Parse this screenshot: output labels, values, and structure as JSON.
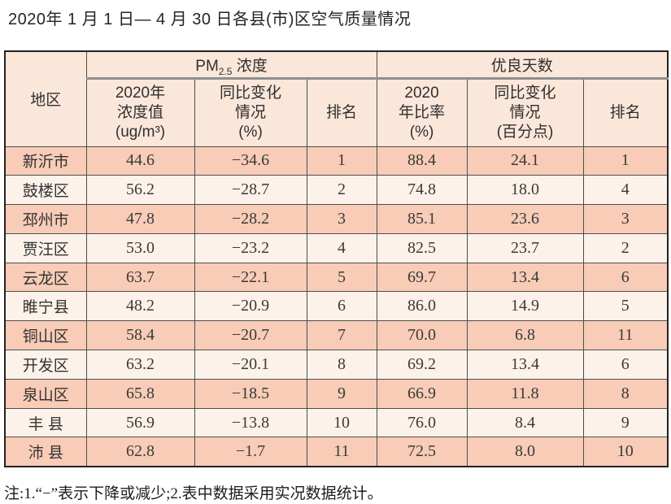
{
  "title": "2020年 1 月 1 日— 4 月 30 日各县(市)区空气质量情况",
  "colors": {
    "header_bg": "#fbe7da",
    "row_odd_bg": "#f8ccb7",
    "row_even_bg": "#fdf2ea",
    "border": "#4d4d4d",
    "outer_border": "#222222"
  },
  "table": {
    "region_header": "地区",
    "pm_group": {
      "prefix": "PM",
      "sub": "2.5",
      "suffix": " 浓度"
    },
    "good_group_label": "优良天数",
    "sub_headers": {
      "pm_value": [
        "2020年",
        "浓度值",
        "(ug/m³)"
      ],
      "pm_change": [
        "同比变化",
        "情况",
        "(%)"
      ],
      "pm_rank": "排名",
      "good_ratio": [
        "2020",
        "年比率",
        "(%)"
      ],
      "good_change": [
        "同比变化",
        "情况",
        "(百分点)"
      ],
      "good_rank": "排名"
    },
    "rows": [
      {
        "region": "新沂市",
        "pm_value": "44.6",
        "pm_change": "−34.6",
        "pm_rank": "1",
        "good_ratio": "88.4",
        "good_change": "24.1",
        "good_rank": "1"
      },
      {
        "region": "鼓楼区",
        "pm_value": "56.2",
        "pm_change": "−28.7",
        "pm_rank": "2",
        "good_ratio": "74.8",
        "good_change": "18.0",
        "good_rank": "4"
      },
      {
        "region": "邳州市",
        "pm_value": "47.8",
        "pm_change": "−28.2",
        "pm_rank": "3",
        "good_ratio": "85.1",
        "good_change": "23.6",
        "good_rank": "3"
      },
      {
        "region": "贾汪区",
        "pm_value": "53.0",
        "pm_change": "−23.2",
        "pm_rank": "4",
        "good_ratio": "82.5",
        "good_change": "23.7",
        "good_rank": "2"
      },
      {
        "region": "云龙区",
        "pm_value": "63.7",
        "pm_change": "−22.1",
        "pm_rank": "5",
        "good_ratio": "69.7",
        "good_change": "13.4",
        "good_rank": "6"
      },
      {
        "region": "睢宁县",
        "pm_value": "48.2",
        "pm_change": "−20.9",
        "pm_rank": "6",
        "good_ratio": "86.0",
        "good_change": "14.9",
        "good_rank": "5"
      },
      {
        "region": "铜山区",
        "pm_value": "58.4",
        "pm_change": "−20.7",
        "pm_rank": "7",
        "good_ratio": "70.0",
        "good_change": "6.8",
        "good_rank": "11"
      },
      {
        "region": "开发区",
        "pm_value": "63.2",
        "pm_change": "−20.1",
        "pm_rank": "8",
        "good_ratio": "69.2",
        "good_change": "13.4",
        "good_rank": "6"
      },
      {
        "region": "泉山区",
        "pm_value": "65.8",
        "pm_change": "−18.5",
        "pm_rank": "9",
        "good_ratio": "66.9",
        "good_change": "11.8",
        "good_rank": "8"
      },
      {
        "region": "丰 县",
        "pm_value": "56.9",
        "pm_change": "−13.8",
        "pm_rank": "10",
        "good_ratio": "76.0",
        "good_change": "8.4",
        "good_rank": "9"
      },
      {
        "region": "沛 县",
        "pm_value": "62.8",
        "pm_change": "−1.7",
        "pm_rank": "11",
        "good_ratio": "72.5",
        "good_change": "8.0",
        "good_rank": "10"
      }
    ]
  },
  "footnote": "注:1.“−”表示下降或减少;2.表中数据采用实况数据统计。"
}
